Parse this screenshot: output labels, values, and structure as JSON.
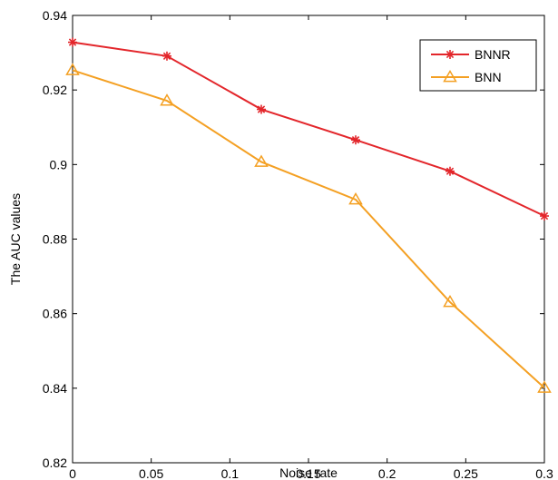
{
  "chart_data": {
    "type": "line",
    "title": "",
    "xlabel": "Noise rate",
    "ylabel": "The AUC values",
    "xlim": [
      0,
      0.3
    ],
    "ylim": [
      0.82,
      0.94
    ],
    "xticks": [
      "0",
      "0.05",
      "0.1",
      "0.15",
      "0.2",
      "0.25",
      "0.3"
    ],
    "yticks": [
      "0.82",
      "0.84",
      "0.86",
      "0.88",
      "0.9",
      "0.92",
      "0.94"
    ],
    "x": [
      0,
      0.06,
      0.12,
      0.18,
      0.24,
      0.3
    ],
    "grid": false,
    "legend_position": "top-right",
    "series": [
      {
        "name": "BNNR",
        "values": [
          0.9328,
          0.9291,
          0.9148,
          0.9066,
          0.8982,
          0.8862
        ],
        "color": "#e3262b",
        "marker": "asterisk"
      },
      {
        "name": "BNN",
        "values": [
          0.9253,
          0.9171,
          0.9007,
          0.8906,
          0.8631,
          0.8401
        ],
        "color": "#f4a023",
        "marker": "triangle"
      }
    ]
  }
}
